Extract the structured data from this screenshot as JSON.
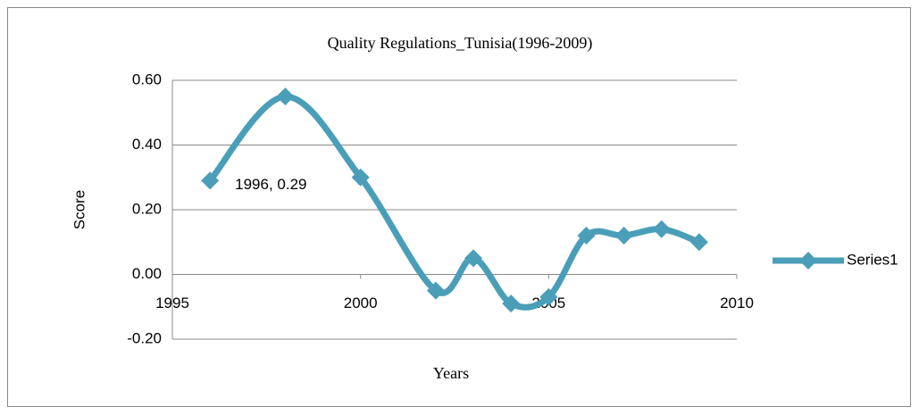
{
  "chart_data": {
    "type": "line",
    "title": "Quality Regulations_Tunisia(1996-2009)",
    "x_label": "Years",
    "y_label": "Score",
    "x": [
      1996,
      1998,
      2000,
      2002,
      2003,
      2004,
      2005,
      2006,
      2007,
      2008,
      2009
    ],
    "series": [
      {
        "name": "Series1",
        "color": "#4a9eb8",
        "smooth": true,
        "values": [
          0.29,
          0.55,
          0.3,
          -0.05,
          0.05,
          -0.09,
          -0.07,
          0.12,
          0.12,
          0.14,
          0.1
        ],
        "value_labels": [
          "1996, 0.29",
          null,
          null,
          null,
          null,
          null,
          null,
          null,
          null,
          null,
          null
        ]
      }
    ],
    "xlim": [
      1995,
      2010
    ],
    "xticks": [
      1995,
      2000,
      2005,
      2010
    ],
    "ylim": [
      -0.2,
      0.6
    ],
    "yticks": [
      {
        "value": -0.2,
        "label": "-0.20"
      },
      {
        "value": 0,
        "label": "0.00"
      },
      {
        "value": 0.2,
        "label": "0.20"
      },
      {
        "value": 0.4,
        "label": "0.40"
      },
      {
        "value": 0.6,
        "label": "0.60"
      }
    ],
    "grid": true,
    "legend": "right"
  }
}
